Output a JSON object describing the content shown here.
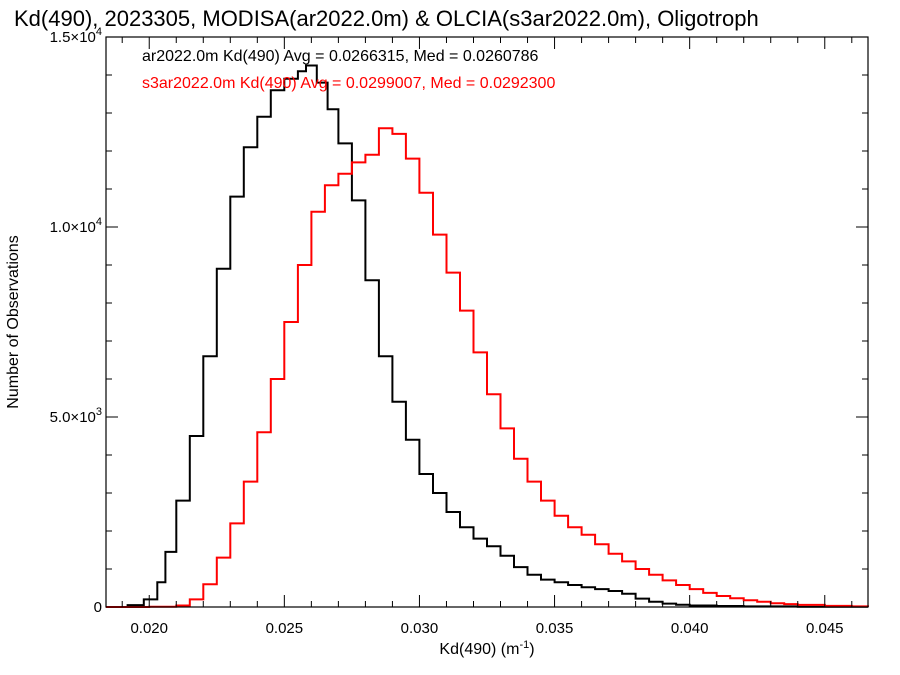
{
  "chart_data": {
    "type": "line",
    "title": "Kd(490), 2023305, MODISA(ar2022.0m) & OLCIA(s3ar2022.0m), Oligotroph",
    "xlabel": "Kd(490) (m",
    "xlabel_sup": "-1",
    "xlabel_close": ")",
    "ylabel": "Number of Observations",
    "xlim": [
      0.0184,
      0.0466
    ],
    "ylim": [
      0,
      15000
    ],
    "x_ticks": [
      {
        "value": 0.02,
        "label": "0.020"
      },
      {
        "value": 0.025,
        "label": "0.025"
      },
      {
        "value": 0.03,
        "label": "0.030"
      },
      {
        "value": 0.035,
        "label": "0.035"
      },
      {
        "value": 0.04,
        "label": "0.040"
      },
      {
        "value": 0.045,
        "label": "0.045"
      }
    ],
    "y_ticks": [
      {
        "value": 0,
        "label": "0",
        "sup": ""
      },
      {
        "value": 5000,
        "label": "5.0×10",
        "sup": "3"
      },
      {
        "value": 10000,
        "label": "1.0×10",
        "sup": "4"
      },
      {
        "value": 15000,
        "label": "1.5×10",
        "sup": "4"
      }
    ],
    "grid": false,
    "legend": [
      {
        "text": "ar2022.0m Kd(490) Avg = 0.0266315, Med = 0.0260786",
        "color": "#000000"
      },
      {
        "text": "s3ar2022.0m Kd(490) Avg = 0.0299007, Med = 0.0292300",
        "color": "#ff0000"
      }
    ],
    "legend_placement": "top-left",
    "series": [
      {
        "color": "#000000",
        "points": [
          [
            0.0184,
            0
          ],
          [
            0.0192,
            50
          ],
          [
            0.0198,
            200
          ],
          [
            0.0203,
            650
          ],
          [
            0.0206,
            1450
          ],
          [
            0.021,
            2800
          ],
          [
            0.0215,
            4500
          ],
          [
            0.022,
            6600
          ],
          [
            0.0225,
            8900
          ],
          [
            0.023,
            10800
          ],
          [
            0.0235,
            12100
          ],
          [
            0.024,
            12900
          ],
          [
            0.0245,
            13600
          ],
          [
            0.025,
            13900
          ],
          [
            0.0255,
            14100
          ],
          [
            0.0258,
            14250
          ],
          [
            0.0262,
            13800
          ],
          [
            0.0266,
            13100
          ],
          [
            0.027,
            12200
          ],
          [
            0.0275,
            10700
          ],
          [
            0.028,
            8600
          ],
          [
            0.0285,
            6600
          ],
          [
            0.029,
            5400
          ],
          [
            0.0295,
            4400
          ],
          [
            0.03,
            3500
          ],
          [
            0.0305,
            3000
          ],
          [
            0.031,
            2500
          ],
          [
            0.0315,
            2100
          ],
          [
            0.032,
            1800
          ],
          [
            0.0325,
            1600
          ],
          [
            0.033,
            1350
          ],
          [
            0.0335,
            1050
          ],
          [
            0.034,
            850
          ],
          [
            0.0345,
            720
          ],
          [
            0.035,
            650
          ],
          [
            0.0355,
            580
          ],
          [
            0.036,
            520
          ],
          [
            0.0365,
            470
          ],
          [
            0.037,
            420
          ],
          [
            0.0375,
            350
          ],
          [
            0.038,
            220
          ],
          [
            0.0385,
            140
          ],
          [
            0.039,
            90
          ],
          [
            0.0395,
            60
          ],
          [
            0.04,
            40
          ],
          [
            0.041,
            25
          ],
          [
            0.042,
            15
          ],
          [
            0.044,
            8
          ],
          [
            0.0466,
            5
          ]
        ]
      },
      {
        "color": "#ff0000",
        "points": [
          [
            0.0184,
            0
          ],
          [
            0.02,
            5
          ],
          [
            0.021,
            40
          ],
          [
            0.0215,
            200
          ],
          [
            0.022,
            600
          ],
          [
            0.0225,
            1300
          ],
          [
            0.023,
            2200
          ],
          [
            0.0235,
            3300
          ],
          [
            0.024,
            4600
          ],
          [
            0.0245,
            6000
          ],
          [
            0.025,
            7500
          ],
          [
            0.0255,
            9000
          ],
          [
            0.026,
            10400
          ],
          [
            0.0265,
            11100
          ],
          [
            0.027,
            11400
          ],
          [
            0.0275,
            11700
          ],
          [
            0.028,
            11900
          ],
          [
            0.0285,
            12600
          ],
          [
            0.029,
            12450
          ],
          [
            0.0295,
            11800
          ],
          [
            0.03,
            10900
          ],
          [
            0.0305,
            9800
          ],
          [
            0.031,
            8800
          ],
          [
            0.0315,
            7800
          ],
          [
            0.032,
            6700
          ],
          [
            0.0325,
            5600
          ],
          [
            0.033,
            4700
          ],
          [
            0.0335,
            3900
          ],
          [
            0.034,
            3300
          ],
          [
            0.0345,
            2800
          ],
          [
            0.035,
            2400
          ],
          [
            0.0355,
            2100
          ],
          [
            0.036,
            1900
          ],
          [
            0.0365,
            1650
          ],
          [
            0.037,
            1400
          ],
          [
            0.0375,
            1200
          ],
          [
            0.038,
            1000
          ],
          [
            0.0385,
            850
          ],
          [
            0.039,
            700
          ],
          [
            0.0395,
            580
          ],
          [
            0.04,
            470
          ],
          [
            0.0405,
            370
          ],
          [
            0.041,
            290
          ],
          [
            0.0415,
            230
          ],
          [
            0.042,
            180
          ],
          [
            0.0425,
            140
          ],
          [
            0.043,
            100
          ],
          [
            0.0435,
            75
          ],
          [
            0.044,
            55
          ],
          [
            0.045,
            30
          ],
          [
            0.046,
            15
          ],
          [
            0.0466,
            10
          ]
        ]
      }
    ]
  }
}
